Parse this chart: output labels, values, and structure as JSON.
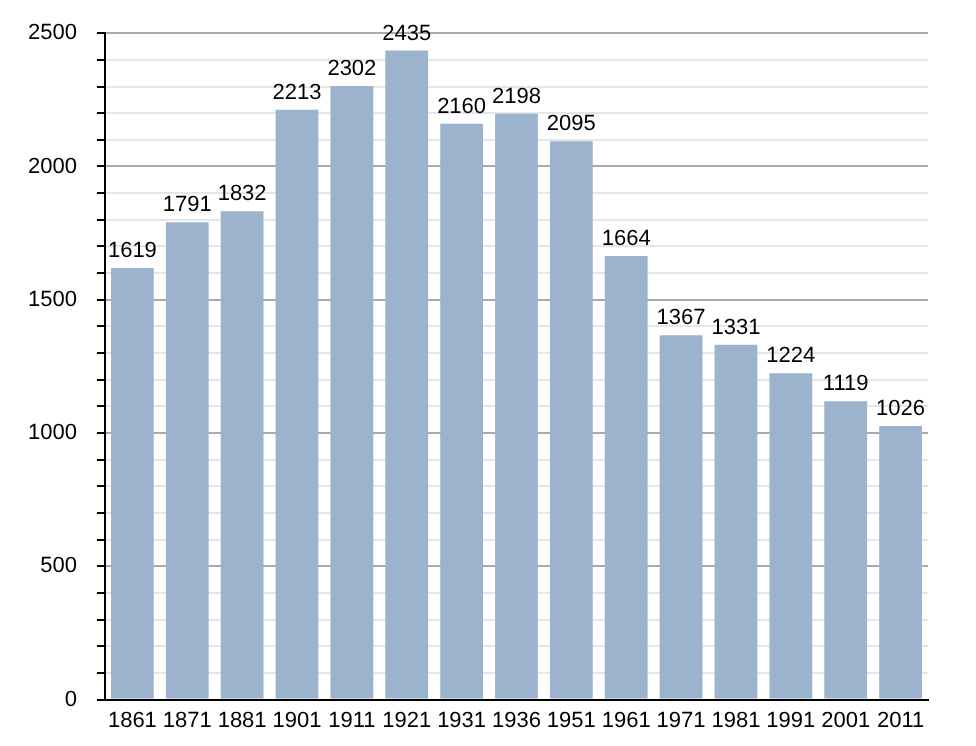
{
  "chart_data": {
    "type": "bar",
    "categories": [
      "1861",
      "1871",
      "1881",
      "1901",
      "1911",
      "1921",
      "1931",
      "1936",
      "1951",
      "1961",
      "1971",
      "1981",
      "1991",
      "2001",
      "2011"
    ],
    "values": [
      1619,
      1791,
      1832,
      2213,
      2302,
      2435,
      2160,
      2198,
      2095,
      1664,
      1367,
      1331,
      1224,
      1119,
      1026
    ],
    "color": "#9bb3cd",
    "data_labels": true,
    "grid": "y",
    "ylim": [
      0,
      2500
    ],
    "yticks": [
      0,
      {
        "value": 100,
        "label": null
      },
      {
        "value": 200,
        "label": null
      },
      {
        "value": 300,
        "label": null
      },
      {
        "value": 400,
        "label": null
      },
      500,
      {
        "value": 600,
        "label": null
      },
      {
        "value": 700,
        "label": null
      },
      {
        "value": 800,
        "label": null
      },
      {
        "value": 900,
        "label": null
      },
      1000,
      {
        "value": 1100,
        "label": null
      },
      {
        "value": 1200,
        "label": null
      },
      {
        "value": 1300,
        "label": null
      },
      {
        "value": 1400,
        "label": null
      },
      1500,
      {
        "value": 1600,
        "label": null
      },
      {
        "value": 1700,
        "label": null
      },
      {
        "value": 1800,
        "label": null
      },
      {
        "value": 1900,
        "label": null
      },
      2000,
      {
        "value": 2100,
        "label": null
      },
      {
        "value": 2200,
        "label": null
      },
      {
        "value": 2300,
        "label": null
      },
      {
        "value": 2400,
        "label": null
      },
      2500
    ]
  }
}
